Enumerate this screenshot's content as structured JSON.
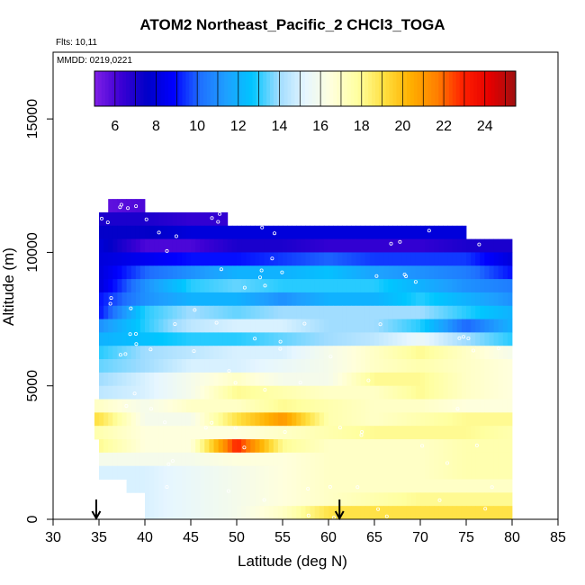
{
  "chart_data": {
    "type": "heatmap",
    "title": "ATOM2 Northeast_Pacific_2 CHCl3_TOGA",
    "flights_text": "Flts: 10,11",
    "dates_text": "MMDD: 0219,0221",
    "xlabel": "Latitude (deg N)",
    "ylabel": "Altitude (m)",
    "xlim": [
      30,
      85
    ],
    "ylim": [
      0,
      17500
    ],
    "xticks": [
      "30",
      "35",
      "40",
      "45",
      "50",
      "55",
      "60",
      "65",
      "70",
      "75",
      "80",
      "85"
    ],
    "yticks": [
      "0",
      "5000",
      "10000",
      "15000"
    ],
    "colorbar": {
      "range": [
        5,
        25.5
      ],
      "tick_labels": [
        "6",
        "8",
        "10",
        "12",
        "14",
        "16",
        "18",
        "20",
        "22",
        "24"
      ],
      "colors": [
        "#7f1fe6",
        "#3c00d4",
        "#0000c8",
        "#0000ff",
        "#1f6fff",
        "#1ea0ff",
        "#00c6ff",
        "#9fdcff",
        "#e6f6ff",
        "#ffffdc",
        "#ffffa0",
        "#ffe040",
        "#ffb000",
        "#ff8000",
        "#ff2000",
        "#e60000",
        "#a01010"
      ]
    },
    "markers": {
      "arrow_latitudes": [
        34.7,
        61.2
      ]
    },
    "altitude_bins_m": [
      11750,
      11250,
      10750,
      10250,
      9750,
      9250,
      8750,
      8250,
      7750,
      7250,
      6750,
      6250,
      5750,
      5250,
      4750,
      4250,
      3750,
      3250,
      2750,
      2250,
      1750,
      1250,
      750,
      250
    ],
    "latitude_range_per_bin": [
      [
        36,
        40
      ],
      [
        35,
        49
      ],
      [
        35,
        75
      ],
      [
        35,
        80
      ],
      [
        35,
        80
      ],
      [
        35,
        80
      ],
      [
        35,
        80
      ],
      [
        35,
        80
      ],
      [
        35,
        80
      ],
      [
        35,
        80
      ],
      [
        35,
        80
      ],
      [
        35,
        80
      ],
      [
        35,
        80
      ],
      [
        35,
        80
      ],
      [
        35,
        80
      ],
      [
        34.5,
        80
      ],
      [
        34.5,
        80
      ],
      [
        34.5,
        80
      ],
      [
        35,
        80
      ],
      [
        35,
        80
      ],
      [
        35,
        80
      ],
      [
        38,
        80
      ],
      [
        40,
        80
      ],
      [
        40,
        80
      ]
    ],
    "latitude_nodes": [
      35,
      40,
      45,
      50,
      55,
      60,
      65,
      70,
      75,
      80
    ],
    "values": [
      [
        5.5,
        6,
        6,
        6,
        6,
        6,
        6,
        6,
        6,
        6
      ],
      [
        7,
        7,
        6.5,
        6.5,
        6.5,
        6.5,
        6.5,
        6.5,
        6.5,
        6.5
      ],
      [
        7.5,
        7.5,
        8,
        8,
        8,
        8,
        8,
        8,
        8,
        8
      ],
      [
        8,
        6,
        6,
        7,
        7,
        6.5,
        6.5,
        6.5,
        7,
        7
      ],
      [
        8,
        8.5,
        9,
        9,
        9.5,
        10,
        9.5,
        9.5,
        9.5,
        8
      ],
      [
        8,
        10,
        11,
        12,
        12,
        12.5,
        11.5,
        11,
        10.5,
        9
      ],
      [
        8,
        11,
        13,
        13.5,
        13,
        13,
        13,
        12,
        11,
        10.5
      ],
      [
        9,
        11,
        12,
        12,
        11,
        12,
        12,
        13,
        12,
        11
      ],
      [
        9,
        13,
        14,
        13.5,
        14,
        14,
        14,
        14,
        13,
        12
      ],
      [
        11,
        13,
        14.5,
        15,
        15,
        14,
        14,
        13,
        10,
        12
      ],
      [
        12,
        12.5,
        13,
        13,
        13.5,
        14,
        14.5,
        15.5,
        14,
        13
      ],
      [
        13,
        14,
        14.5,
        15,
        15,
        16,
        17,
        18,
        17,
        16
      ],
      [
        13.5,
        14,
        15,
        15,
        15.5,
        16,
        17,
        17.5,
        17,
        16.5
      ],
      [
        14,
        15,
        16,
        17,
        16,
        16,
        18,
        18,
        17,
        16.5
      ],
      [
        14.5,
        15,
        16,
        18,
        17.5,
        17,
        17,
        18,
        17,
        16.5
      ],
      [
        17,
        16,
        17,
        17,
        18,
        17.5,
        17,
        17,
        16.5,
        16.5
      ],
      [
        19,
        16,
        16,
        19,
        21,
        17.5,
        17,
        17.5,
        18,
        18
      ],
      [
        17.5,
        16.5,
        16.5,
        16.5,
        17,
        17.5,
        18,
        18,
        18,
        17.5
      ],
      [
        18,
        16.5,
        16.5,
        23,
        18,
        17,
        17,
        17,
        17.5,
        17.5
      ],
      [
        16,
        16,
        16,
        16.5,
        16.5,
        17,
        17,
        17,
        17.5,
        17.5
      ],
      [
        15,
        15,
        15.5,
        16,
        16.5,
        17,
        17,
        17,
        17.5,
        17.5
      ],
      [
        15,
        15,
        15.5,
        16,
        16.5,
        17,
        17,
        17,
        17,
        17
      ],
      [
        15,
        15,
        15.5,
        16,
        16.5,
        17,
        17.5,
        18,
        18,
        18
      ],
      [
        15,
        15,
        15.5,
        16,
        17,
        19,
        19,
        19,
        19,
        19
      ]
    ]
  }
}
